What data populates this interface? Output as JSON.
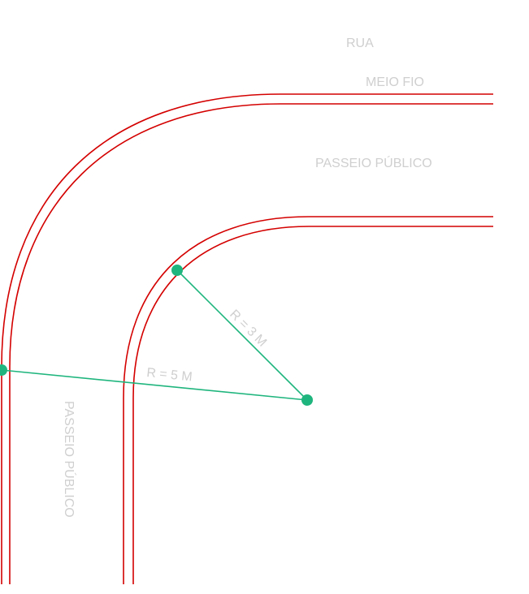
{
  "labels": {
    "street": "RUA",
    "curb": "MEIO FIO",
    "sidewalk_top": "PASSEIO PÚBLICO",
    "sidewalk_left": "PASSEIO PÚBLICO",
    "radius_outer": "R = 5 M",
    "radius_inner": "R = 3 M"
  },
  "colors": {
    "curb_line": "#d40000",
    "radius_line": "#1fb57e",
    "label_text": "#cfcfcf",
    "background": "#ffffff"
  }
}
